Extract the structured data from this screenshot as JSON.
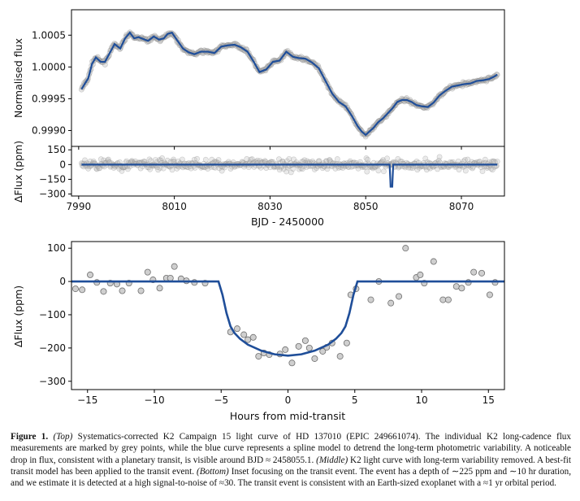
{
  "chart_data": [
    {
      "id": "top",
      "type": "scatter",
      "ylabel": "Normalised flux",
      "xlim": [
        7988.5,
        8079
      ],
      "ylim": [
        0.99875,
        1.0009
      ],
      "yticks": [
        0.999,
        0.9995,
        1.0,
        1.0005
      ],
      "ytick_labels": [
        "0.9990",
        "0.9995",
        "1.0000",
        "1.0005"
      ],
      "xticks": [
        7990,
        8010,
        8030,
        8050,
        8070
      ],
      "grid": false,
      "series": [
        {
          "name": "spline model",
          "color": "#1f4e99",
          "x": [
            7990.6,
            7991.4,
            7992.0,
            7992.8,
            7993.6,
            7994.6,
            7995.5,
            7996.5,
            7997.5,
            7998.7,
            7999.7,
            8000.7,
            8001.6,
            8002.5,
            8003.5,
            8004.5,
            8005.7,
            8006.8,
            8007.8,
            8008.6,
            8009.5,
            8010.5,
            8011.8,
            8013.0,
            8014.2,
            8015.5,
            8017.0,
            8018.4,
            8019.8,
            8021.2,
            8022.6,
            8023.9,
            8025.3,
            8026.6,
            8027.8,
            8029.2,
            8030.6,
            8032.0,
            8033.4,
            8034.8,
            8036.0,
            8037.4,
            8038.8,
            8040.2,
            8041.6,
            8043.0,
            8044.4,
            8045.8,
            8047.1,
            8048.3,
            8049.2,
            8050.0,
            8050.7,
            8051.6,
            8052.6,
            8053.6,
            8054.6,
            8055.6,
            8056.6,
            8057.6,
            8058.6,
            8059.6,
            8060.6,
            8061.8,
            8063.0,
            8064.2,
            8065.4,
            8066.6,
            8068.0,
            8069.3,
            8070.6,
            8071.9,
            8073.2,
            8074.5,
            8075.8,
            8076.9,
            8077.5
          ],
          "y": [
            0.99965,
            0.99975,
            0.99982,
            1.00005,
            1.00015,
            1.00008,
            1.00008,
            1.00022,
            1.00036,
            1.00029,
            1.00045,
            1.00054,
            1.00045,
            1.00047,
            1.00044,
            1.00041,
            1.00048,
            1.00043,
            1.00045,
            1.00052,
            1.00054,
            1.00043,
            1.00029,
            1.00023,
            1.0002,
            1.00024,
            1.00024,
            1.00022,
            1.00032,
            1.00034,
            1.00035,
            1.00031,
            1.00024,
            1.00008,
            0.99992,
            0.99996,
            1.00008,
            1.0001,
            1.00024,
            1.00016,
            1.00014,
            1.00013,
            1.00007,
            0.99998,
            0.99978,
            0.99958,
            0.99945,
            0.99938,
            0.99923,
            0.99907,
            0.99898,
            0.99893,
            0.99898,
            0.99904,
            0.99913,
            0.99919,
            0.99927,
            0.99935,
            0.99945,
            0.99948,
            0.99948,
            0.99945,
            0.9994,
            0.99938,
            0.99937,
            0.99944,
            0.99955,
            0.99962,
            0.99969,
            0.99971,
            0.99973,
            0.99974,
            0.99978,
            0.99979,
            0.99981,
            0.99985,
            0.99988
          ]
        }
      ],
      "scatter_style": "grey points (K2 long-cadence flux)"
    },
    {
      "id": "middle",
      "type": "scatter",
      "ylabel": "ΔFlux (ppm)",
      "xlabel": "BJD - 2450000",
      "xlim": [
        7988.5,
        8079
      ],
      "ylim": [
        -320,
        185
      ],
      "yticks": [
        150,
        0,
        -150,
        -300
      ],
      "ytick_labels": [
        "150",
        "0",
        "−150",
        "−300"
      ],
      "xticks": [
        7990,
        8010,
        8030,
        8050,
        8070
      ],
      "xtick_labels": [
        "7990",
        "8010",
        "8030",
        "8050",
        "8070"
      ],
      "grid": false,
      "series": [
        {
          "name": "transit model",
          "color": "#1f4e99",
          "x": [
            7990.6,
            8055.0,
            8055.15,
            8055.2,
            8055.55,
            8055.6,
            8055.75,
            8077.5
          ],
          "y": [
            0,
            0,
            -160,
            -225,
            -225,
            -160,
            0,
            0
          ]
        }
      ],
      "scatter_style": "grey residual points, spread about ±80 ppm"
    },
    {
      "id": "bottom",
      "type": "scatter",
      "xlabel": "Hours from mid-transit",
      "ylabel": "ΔFlux (ppm)",
      "xlim": [
        -16.2,
        16.2
      ],
      "ylim": [
        -325,
        120
      ],
      "yticks": [
        100,
        0,
        -100,
        -200,
        -300
      ],
      "ytick_labels": [
        "100",
        "0",
        "−100",
        "−200",
        "−300"
      ],
      "xticks": [
        -15,
        -10,
        -5,
        0,
        5,
        10,
        15
      ],
      "xtick_labels": [
        "−15",
        "−10",
        "−5",
        "0",
        "5",
        "10",
        "15"
      ],
      "grid": false,
      "series": [
        {
          "name": "transit model",
          "color": "#1f4e99",
          "x": [
            -16.2,
            -5.2,
            -4.9,
            -4.6,
            -4.3,
            -4.0,
            -3.6,
            -3.0,
            -2.0,
            -1.0,
            0,
            1.0,
            2.0,
            3.0,
            3.6,
            4.0,
            4.3,
            4.6,
            4.9,
            5.2,
            16.2
          ],
          "y": [
            0,
            0,
            -40,
            -95,
            -135,
            -155,
            -172,
            -190,
            -208,
            -219,
            -223,
            -219,
            -208,
            -190,
            -172,
            -155,
            -135,
            -95,
            -40,
            0,
            0
          ]
        },
        {
          "name": "observations",
          "color": "#b8b8b8",
          "x": [
            -15.9,
            -15.4,
            -14.8,
            -14.3,
            -13.8,
            -13.3,
            -12.8,
            -12.4,
            -11.9,
            -11.0,
            -10.5,
            -10.1,
            -9.6,
            -9.1,
            -8.8,
            -8.5,
            -8.0,
            -7.6,
            -7.0,
            -6.2,
            -4.3,
            -3.8,
            -3.3,
            -3.0,
            -2.6,
            -2.2,
            -1.8,
            -1.4,
            -0.6,
            -0.2,
            0.3,
            0.8,
            1.3,
            1.6,
            2.0,
            2.6,
            2.9,
            3.3,
            3.9,
            4.4,
            4.7,
            5.1,
            6.2,
            6.8,
            7.7,
            8.3,
            8.8,
            9.6,
            9.9,
            10.2,
            10.9,
            11.6,
            12.0,
            12.6,
            13.0,
            13.5,
            13.9,
            14.5,
            15.1,
            15.5
          ],
          "y": [
            -22,
            -25,
            20,
            -3,
            -30,
            -5,
            -8,
            -28,
            -5,
            -28,
            28,
            5,
            -20,
            10,
            10,
            45,
            8,
            2,
            -3,
            -5,
            -152,
            -142,
            -160,
            -175,
            -168,
            -225,
            -215,
            -220,
            -218,
            -205,
            -245,
            -195,
            -178,
            -200,
            -232,
            -210,
            -198,
            -185,
            -225,
            -185,
            -40,
            -22,
            -55,
            0,
            -65,
            -45,
            100,
            12,
            20,
            -5,
            60,
            -55,
            -55,
            -15,
            -20,
            -3,
            28,
            25,
            -40,
            -3
          ]
        }
      ]
    }
  ],
  "caption": {
    "figure_label": "Figure 1.",
    "top_tag": "(Top)",
    "text1": " Systematics-corrected K2 Campaign 15 light curve of HD 137010 (EPIC 249661074). The individual K2 long-cadence flux measurements are marked by grey points, while the blue curve represents a spline model to detrend the long-term photometric variability. A noticeable drop in flux, consistent with a planetary transit, is visible around BJD ≈ 2458055.1. ",
    "middle_tag": "(Middle)",
    "text2": " K2 light curve with long-term variability removed. A best-fit transit model has been applied to the transit event. ",
    "bottom_tag": "(Bottom)",
    "text3": " Inset focusing on the transit event. The event has a depth of ∼225 ppm and ∼10 hr duration, and we estimate it is detected at a high signal-to-noise of ≈30. The transit event is consistent with an Earth-sized exoplanet with a ≈1 yr orbital period."
  },
  "colors": {
    "model": "#1f4e99",
    "points": "#b8b8b8",
    "points_edge": "#8a8a8a"
  }
}
